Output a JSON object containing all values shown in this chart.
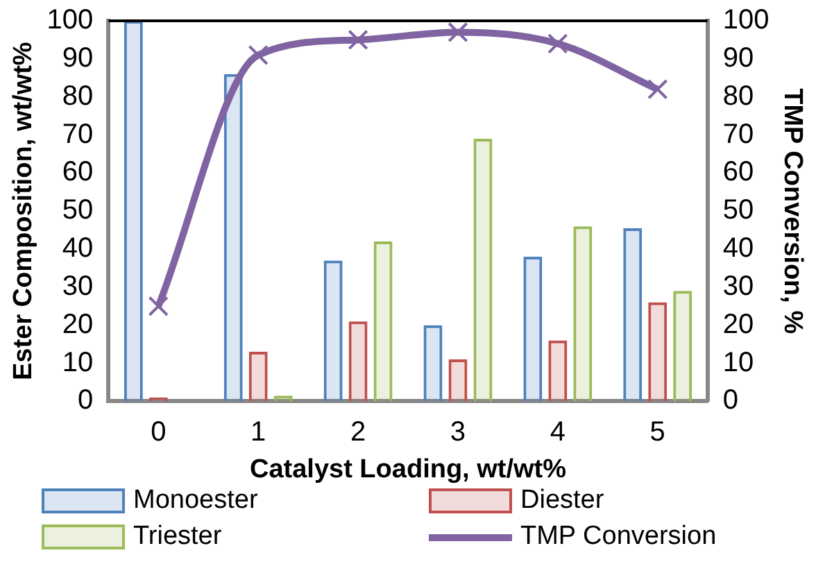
{
  "chart_data": {
    "type": "bar",
    "xlabel": "Catalyst Loading, wt/wt%",
    "ylabel": "Ester Composition, wt/wt%",
    "y2label": "TMP Conversion, %",
    "categories": [
      "0",
      "1",
      "2",
      "3",
      "4",
      "5"
    ],
    "series": [
      {
        "name": "Monoester",
        "color": "#4f81bd",
        "values": [
          100,
          86,
          37,
          20,
          38,
          45.5
        ]
      },
      {
        "name": "Diester",
        "color": "#c0504d",
        "values": [
          1,
          13,
          21,
          11,
          16,
          26
        ]
      },
      {
        "name": "Triester",
        "color": "#9bbb59",
        "values": [
          null,
          1.5,
          42,
          69,
          46,
          29
        ]
      },
      {
        "name": "TMP Conversion",
        "type": "line",
        "axis": "y2",
        "color": "#8064a2",
        "marker": "cross",
        "values": [
          25,
          91,
          95,
          97,
          94,
          82
        ]
      }
    ],
    "ylim": [
      0,
      100
    ],
    "yticks": [
      0,
      10,
      20,
      30,
      40,
      50,
      60,
      70,
      80,
      90,
      100
    ],
    "y2lim": [
      0,
      100
    ],
    "y2ticks": [
      0,
      10,
      20,
      30,
      40,
      50,
      60,
      70,
      80,
      90,
      100
    ],
    "grid": false,
    "legend": "bottom"
  }
}
